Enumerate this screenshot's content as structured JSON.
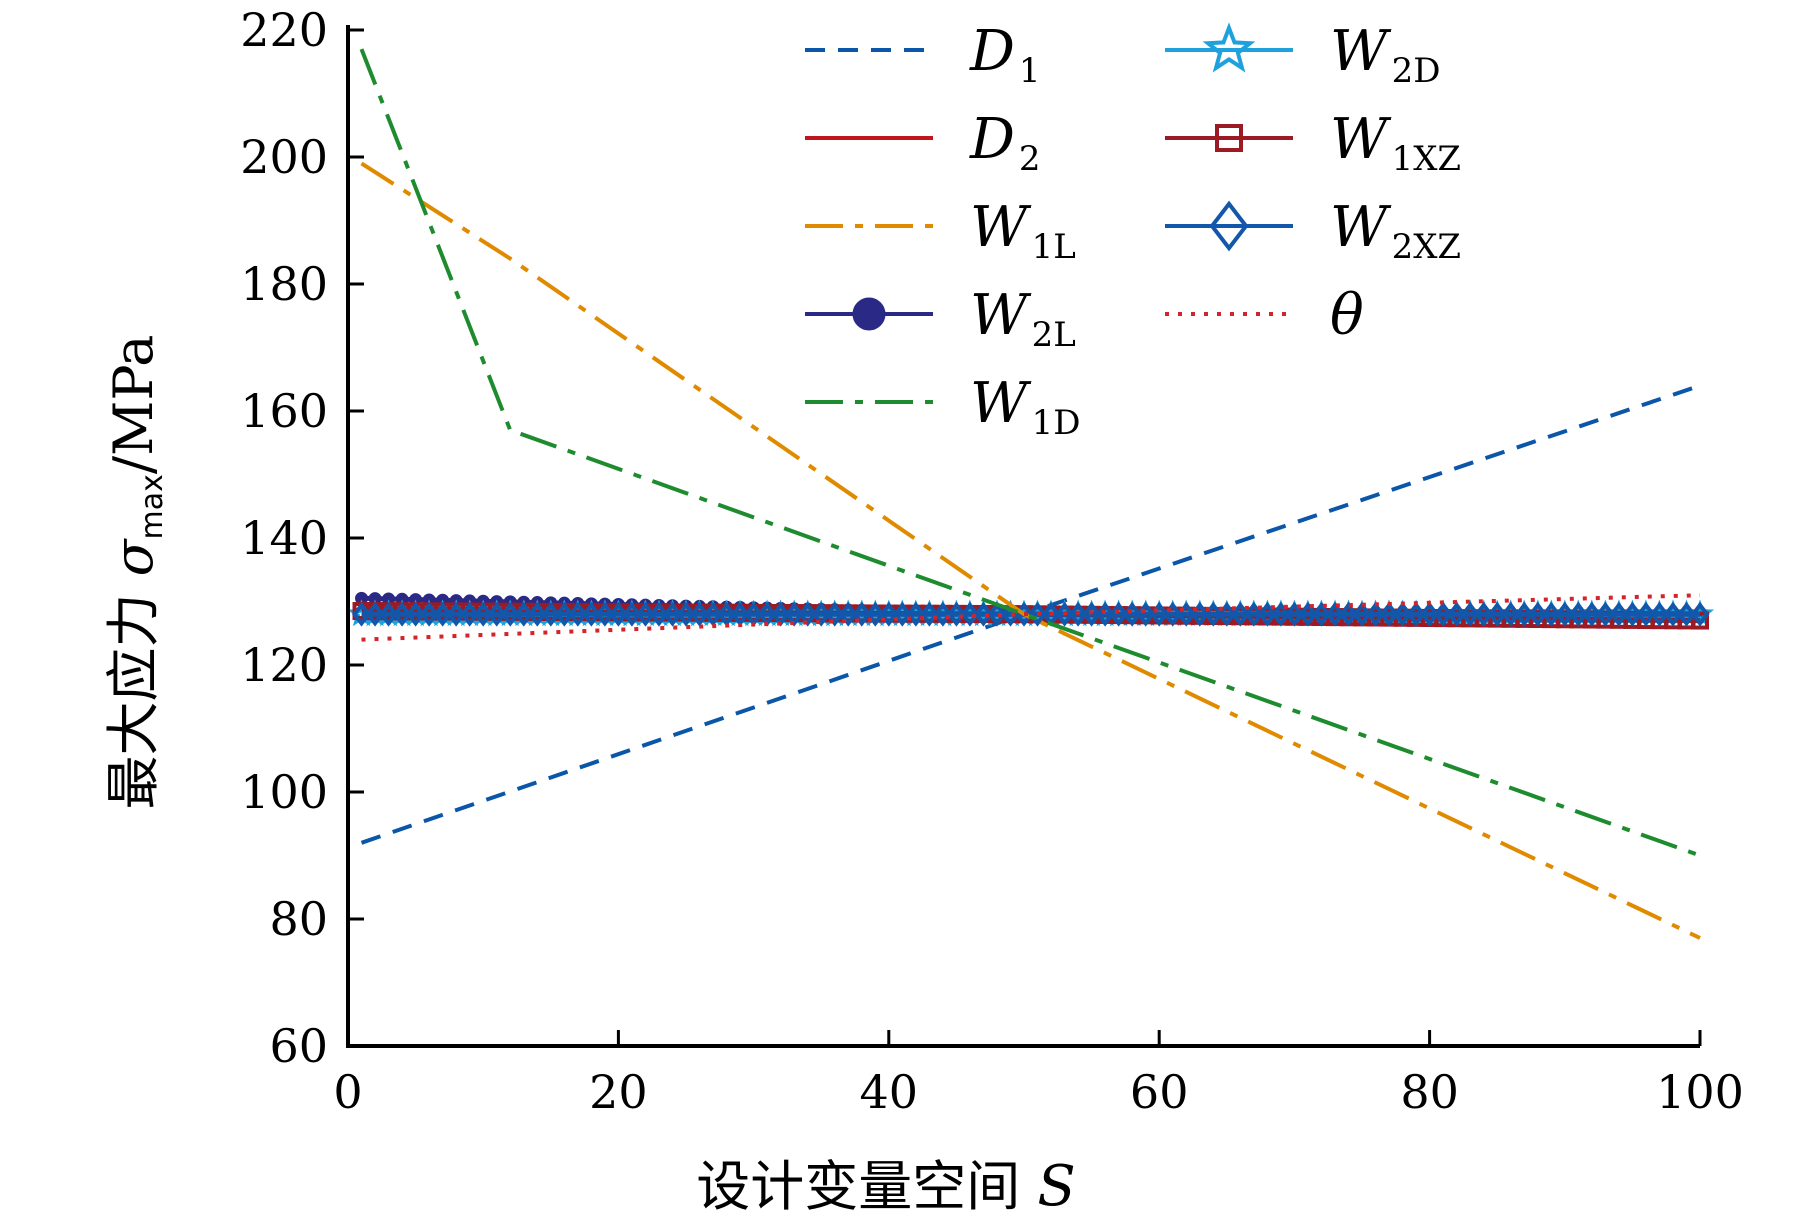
{
  "chart_data": {
    "type": "line",
    "title": "",
    "xlabel": "设计变量空间 S",
    "ylabel": "最大应力 σmax/MPa",
    "ylabel_parts": {
      "prefix": "最大应力 ",
      "symbol": "σ",
      "sub": "max",
      "unit": "/MPa"
    },
    "xlabel_parts": {
      "prefix": "设计变量空间 ",
      "symbol": "S"
    },
    "xlim": [
      0,
      100
    ],
    "ylim": [
      60,
      220
    ],
    "xticks": [
      0,
      20,
      40,
      60,
      80,
      100
    ],
    "yticks": [
      60,
      80,
      100,
      120,
      140,
      160,
      180,
      200,
      220
    ],
    "grid": false,
    "legend_position": "top-right",
    "series": [
      {
        "name": "D1",
        "base": "D",
        "sub": "1",
        "color": "#0b56a8",
        "style": "dashed",
        "marker": "none",
        "x": [
          1,
          50,
          100
        ],
        "y": [
          92,
          128,
          164
        ]
      },
      {
        "name": "D2",
        "base": "D",
        "sub": "2",
        "color": "#c0161b",
        "style": "solid",
        "marker": "none",
        "x": [
          1,
          50,
          100
        ],
        "y": [
          129,
          128,
          127
        ]
      },
      {
        "name": "W1L",
        "base": "W",
        "sub": "1L",
        "color": "#e08a00",
        "style": "dashdot",
        "marker": "none",
        "x": [
          1,
          12,
          50,
          100
        ],
        "y": [
          199,
          184,
          128,
          77
        ]
      },
      {
        "name": "W2L",
        "base": "W",
        "sub": "2L",
        "color": "#2a2a86",
        "style": "solid",
        "marker": "circle",
        "x": [
          1,
          50,
          100
        ],
        "y": [
          130.5,
          128,
          127.5
        ]
      },
      {
        "name": "W1D",
        "base": "W",
        "sub": "1D",
        "color": "#1e8c2e",
        "style": "dashdot",
        "marker": "none",
        "x": [
          1,
          12,
          50,
          100
        ],
        "y": [
          217,
          157,
          128,
          90
        ]
      },
      {
        "name": "W2D",
        "base": "W",
        "sub": "2D",
        "color": "#1ea1dc",
        "style": "solid",
        "marker": "star",
        "x": [
          1,
          50,
          100
        ],
        "y": [
          128,
          128,
          128
        ]
      },
      {
        "name": "W1XZ",
        "base": "W",
        "sub": "1XZ",
        "color": "#9b1a24",
        "style": "solid",
        "marker": "square",
        "x": [
          1,
          50,
          100
        ],
        "y": [
          128.5,
          128,
          127
        ]
      },
      {
        "name": "W2XZ",
        "base": "W",
        "sub": "2XZ",
        "color": "#1257a9",
        "style": "solid",
        "marker": "diamond",
        "x": [
          1,
          50,
          100
        ],
        "y": [
          128,
          128,
          128
        ]
      },
      {
        "name": "θ",
        "base": "θ",
        "sub": "",
        "color": "#d3242c",
        "style": "dotted",
        "marker": "none",
        "x": [
          1,
          50,
          100
        ],
        "y": [
          124,
          128,
          131
        ]
      }
    ]
  }
}
